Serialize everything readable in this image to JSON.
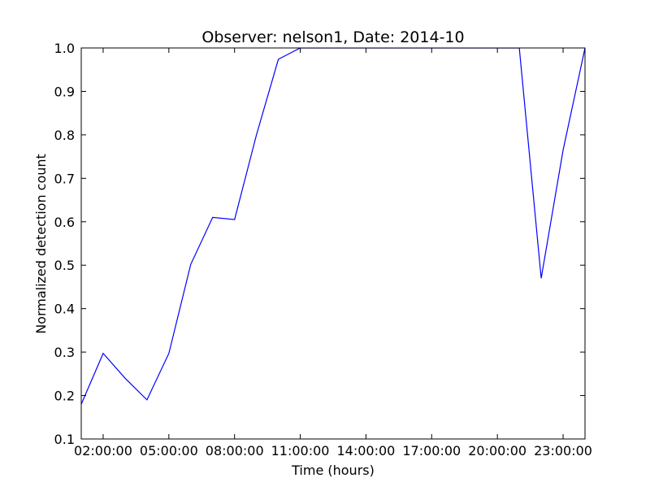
{
  "chart_data": {
    "type": "line",
    "title": "Observer: nelson1, Date: 2014-10",
    "xlabel": "Time (hours)",
    "ylabel": "Normalized detection count",
    "xlim": [
      "01:00:00",
      "24:00:00"
    ],
    "ylim": [
      0.1,
      1.0
    ],
    "grid": false,
    "x_ticks": [
      "02:00:00",
      "05:00:00",
      "08:00:00",
      "11:00:00",
      "14:00:00",
      "17:00:00",
      "20:00:00",
      "23:00:00"
    ],
    "y_ticks": [
      "0.1",
      "0.2",
      "0.3",
      "0.4",
      "0.5",
      "0.6",
      "0.7",
      "0.8",
      "0.9",
      "1.0"
    ],
    "series": [
      {
        "color": "#0000ff",
        "x": [
          "01:00:00",
          "02:00:00",
          "03:00:00",
          "04:00:00",
          "05:00:00",
          "06:00:00",
          "07:00:00",
          "08:00:00",
          "09:00:00",
          "10:00:00",
          "11:00:00",
          "12:00:00",
          "13:00:00",
          "14:00:00",
          "15:00:00",
          "16:00:00",
          "17:00:00",
          "18:00:00",
          "19:00:00",
          "20:00:00",
          "21:00:00",
          "22:00:00",
          "23:00:00",
          "24:00:00"
        ],
        "values": [
          0.18,
          0.297,
          0.24,
          0.19,
          0.297,
          0.502,
          0.61,
          0.605,
          0.8,
          0.974,
          1.0,
          1.0,
          1.0,
          1.0,
          1.0,
          1.0,
          1.0,
          1.0,
          1.0,
          1.0,
          1.0,
          0.47,
          0.765,
          1.0
        ]
      }
    ]
  }
}
